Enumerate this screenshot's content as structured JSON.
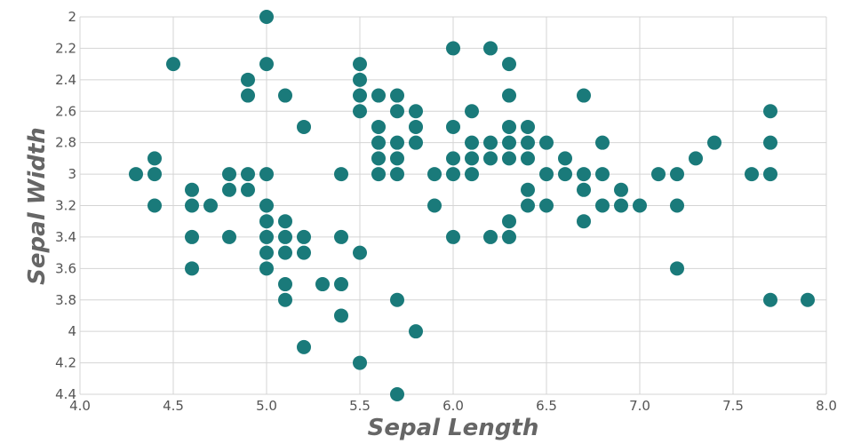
{
  "chart_data": {
    "type": "scatter",
    "title": "",
    "xlabel": "Sepal Length",
    "ylabel": "Sepal Width",
    "xlim": [
      4.0,
      8.0
    ],
    "ylim": [
      2.0,
      4.4
    ],
    "y_inverted": true,
    "grid": true,
    "x_ticks": [
      "4.0",
      "4.5",
      "5.0",
      "5.5",
      "6.0",
      "6.5",
      "7.0",
      "7.5",
      "8.0"
    ],
    "y_ticks": [
      "2",
      "2.2",
      "2.4",
      "2.6",
      "2.8",
      "3",
      "3.2",
      "3.4",
      "3.6",
      "3.8",
      "4",
      "4.2",
      "4.4"
    ],
    "point_color": "#1a7a7a",
    "points": [
      [
        5.0,
        2.0
      ],
      [
        6.0,
        2.2
      ],
      [
        6.2,
        2.2
      ],
      [
        4.5,
        2.3
      ],
      [
        5.0,
        2.3
      ],
      [
        5.5,
        2.3
      ],
      [
        6.3,
        2.3
      ],
      [
        4.9,
        2.4
      ],
      [
        5.5,
        2.4
      ],
      [
        4.9,
        2.5
      ],
      [
        5.1,
        2.5
      ],
      [
        5.5,
        2.5
      ],
      [
        5.6,
        2.5
      ],
      [
        5.7,
        2.5
      ],
      [
        6.3,
        2.5
      ],
      [
        6.7,
        2.5
      ],
      [
        5.5,
        2.6
      ],
      [
        5.7,
        2.6
      ],
      [
        5.8,
        2.6
      ],
      [
        6.1,
        2.6
      ],
      [
        7.7,
        2.6
      ],
      [
        5.2,
        2.7
      ],
      [
        5.6,
        2.7
      ],
      [
        5.8,
        2.7
      ],
      [
        6.0,
        2.7
      ],
      [
        6.3,
        2.7
      ],
      [
        6.4,
        2.7
      ],
      [
        5.6,
        2.8
      ],
      [
        5.7,
        2.8
      ],
      [
        5.8,
        2.8
      ],
      [
        6.1,
        2.8
      ],
      [
        6.2,
        2.8
      ],
      [
        6.3,
        2.8
      ],
      [
        6.4,
        2.8
      ],
      [
        6.5,
        2.8
      ],
      [
        6.8,
        2.8
      ],
      [
        7.4,
        2.8
      ],
      [
        7.7,
        2.8
      ],
      [
        4.4,
        2.9
      ],
      [
        5.6,
        2.9
      ],
      [
        5.7,
        2.9
      ],
      [
        6.0,
        2.9
      ],
      [
        6.1,
        2.9
      ],
      [
        6.2,
        2.9
      ],
      [
        6.3,
        2.9
      ],
      [
        6.4,
        2.9
      ],
      [
        6.6,
        2.9
      ],
      [
        7.3,
        2.9
      ],
      [
        4.3,
        3.0
      ],
      [
        4.4,
        3.0
      ],
      [
        4.8,
        3.0
      ],
      [
        4.9,
        3.0
      ],
      [
        5.0,
        3.0
      ],
      [
        5.4,
        3.0
      ],
      [
        5.6,
        3.0
      ],
      [
        5.7,
        3.0
      ],
      [
        5.9,
        3.0
      ],
      [
        6.0,
        3.0
      ],
      [
        6.1,
        3.0
      ],
      [
        6.5,
        3.0
      ],
      [
        6.6,
        3.0
      ],
      [
        6.7,
        3.0
      ],
      [
        6.8,
        3.0
      ],
      [
        7.1,
        3.0
      ],
      [
        7.2,
        3.0
      ],
      [
        7.6,
        3.0
      ],
      [
        7.7,
        3.0
      ],
      [
        4.6,
        3.1
      ],
      [
        4.8,
        3.1
      ],
      [
        4.9,
        3.1
      ],
      [
        6.4,
        3.1
      ],
      [
        6.7,
        3.1
      ],
      [
        6.9,
        3.1
      ],
      [
        4.4,
        3.2
      ],
      [
        4.6,
        3.2
      ],
      [
        4.7,
        3.2
      ],
      [
        5.0,
        3.2
      ],
      [
        5.9,
        3.2
      ],
      [
        6.4,
        3.2
      ],
      [
        6.5,
        3.2
      ],
      [
        6.8,
        3.2
      ],
      [
        6.9,
        3.2
      ],
      [
        7.0,
        3.2
      ],
      [
        7.2,
        3.2
      ],
      [
        5.0,
        3.3
      ],
      [
        5.1,
        3.3
      ],
      [
        6.3,
        3.3
      ],
      [
        6.7,
        3.3
      ],
      [
        4.6,
        3.4
      ],
      [
        4.8,
        3.4
      ],
      [
        5.0,
        3.4
      ],
      [
        5.1,
        3.4
      ],
      [
        5.2,
        3.4
      ],
      [
        5.4,
        3.4
      ],
      [
        6.0,
        3.4
      ],
      [
        6.2,
        3.4
      ],
      [
        6.3,
        3.4
      ],
      [
        5.0,
        3.5
      ],
      [
        5.1,
        3.5
      ],
      [
        5.2,
        3.5
      ],
      [
        5.5,
        3.5
      ],
      [
        4.6,
        3.6
      ],
      [
        5.0,
        3.6
      ],
      [
        7.2,
        3.6
      ],
      [
        5.1,
        3.7
      ],
      [
        5.3,
        3.7
      ],
      [
        5.4,
        3.7
      ],
      [
        5.1,
        3.8
      ],
      [
        5.7,
        3.8
      ],
      [
        7.7,
        3.8
      ],
      [
        7.9,
        3.8
      ],
      [
        5.4,
        3.9
      ],
      [
        5.8,
        4.0
      ],
      [
        5.2,
        4.1
      ],
      [
        5.5,
        4.2
      ],
      [
        5.7,
        4.4
      ]
    ]
  }
}
